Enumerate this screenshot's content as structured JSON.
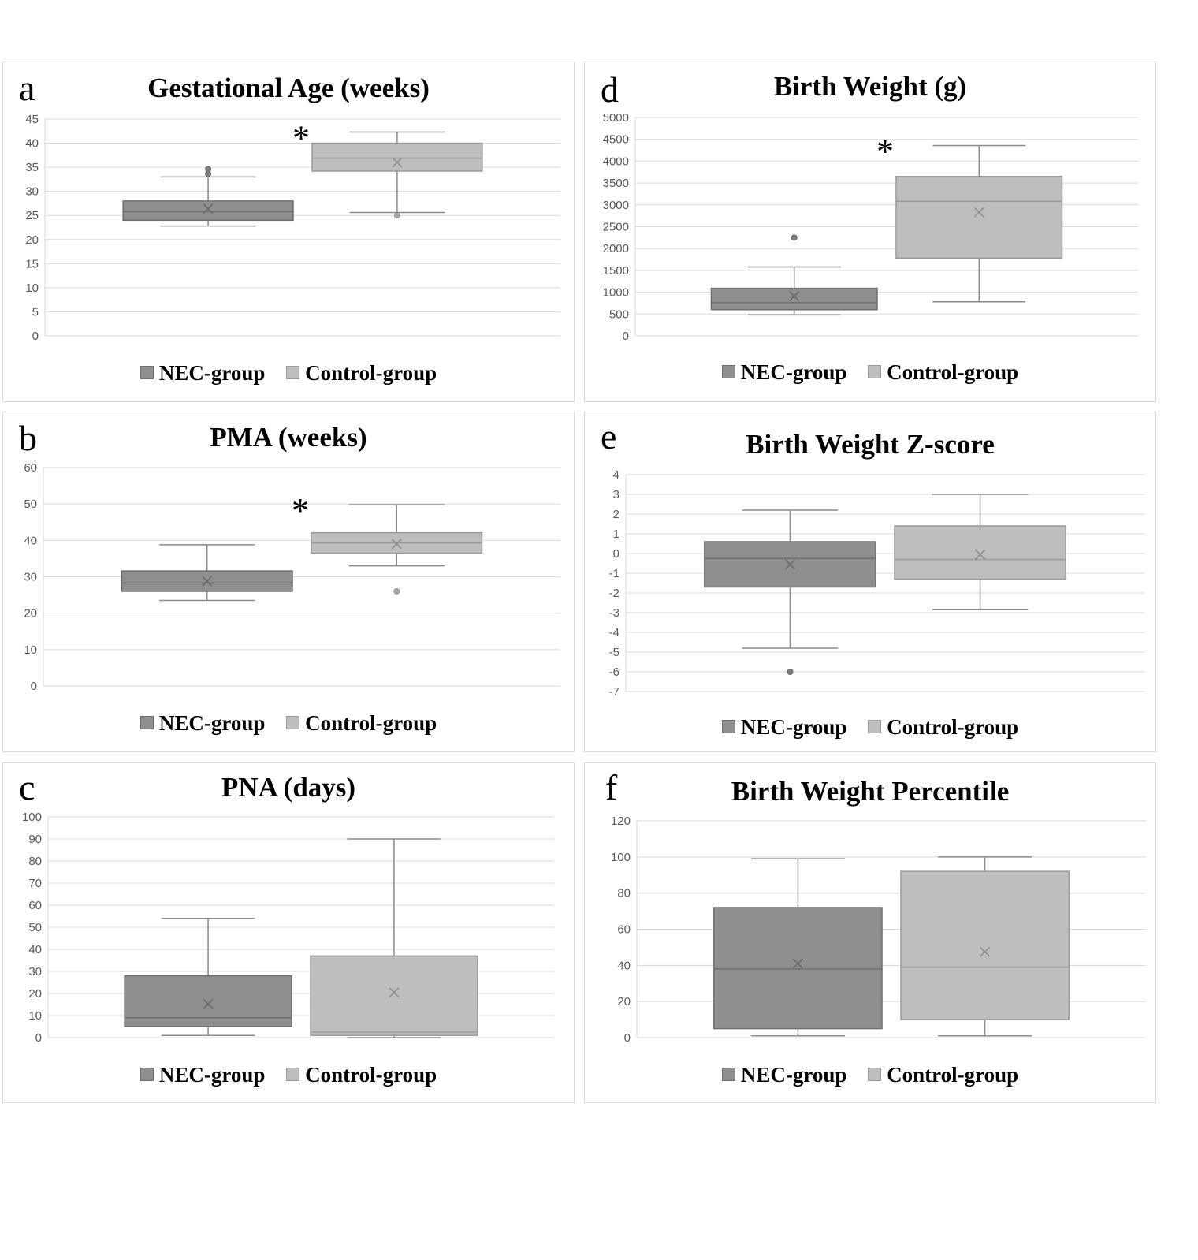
{
  "colors": {
    "nec_fill": "#8f8f8f",
    "nec_stroke": "#6e6e6e",
    "control_fill": "#bebebe",
    "control_stroke": "#9a9a9a",
    "grid": "#d9d9d9",
    "whisker": "#8c8c8c"
  },
  "legend": {
    "nec": "NEC-group",
    "control": "Control-group"
  },
  "significance_marker": "*",
  "chart_data": [
    {
      "panel": "a",
      "type": "box",
      "title": "Gestational Age (weeks)",
      "ylim": [
        0,
        45
      ],
      "yticks": [
        0,
        5,
        10,
        15,
        20,
        25,
        30,
        35,
        40,
        45
      ],
      "ytick_labels": [
        "0",
        "5",
        "10",
        "15",
        "20",
        "25",
        "30",
        "35",
        "40",
        "45"
      ],
      "grid": true,
      "legend_position": "bottom",
      "significant": true,
      "series": [
        {
          "name": "NEC-group",
          "min": 22.8,
          "q1": 24.0,
          "median": 25.8,
          "q3": 28.0,
          "max": 33.0,
          "mean": 26.4,
          "outliers": [
            33.6,
            34.6
          ]
        },
        {
          "name": "Control-group",
          "min": 25.6,
          "q1": 34.2,
          "median": 36.9,
          "q3": 40.0,
          "max": 42.3,
          "mean": 36.0,
          "outliers": [
            25.0
          ]
        }
      ]
    },
    {
      "panel": "b",
      "type": "box",
      "title": "PMA (weeks)",
      "ylim": [
        0,
        60
      ],
      "yticks": [
        0,
        10,
        20,
        30,
        40,
        50,
        60
      ],
      "ytick_labels": [
        "0",
        "10",
        "20",
        "30",
        "40",
        "50",
        "60"
      ],
      "grid": true,
      "legend_position": "bottom",
      "significant": true,
      "series": [
        {
          "name": "NEC-group",
          "min": 23.5,
          "q1": 26.0,
          "median": 28.3,
          "q3": 31.6,
          "max": 38.8,
          "mean": 28.8,
          "outliers": []
        },
        {
          "name": "Control-group",
          "min": 33.0,
          "q1": 36.5,
          "median": 39.3,
          "q3": 42.1,
          "max": 49.8,
          "mean": 39.0,
          "outliers": [
            26.0
          ]
        }
      ]
    },
    {
      "panel": "c",
      "type": "box",
      "title": "PNA (days)",
      "ylim": [
        0,
        100
      ],
      "yticks": [
        0,
        10,
        20,
        30,
        40,
        50,
        60,
        70,
        80,
        90,
        100
      ],
      "ytick_labels": [
        "0",
        "10",
        "20",
        "30",
        "40",
        "50",
        "60",
        "70",
        "80",
        "90",
        "100"
      ],
      "grid": true,
      "legend_position": "bottom",
      "significant": false,
      "series": [
        {
          "name": "NEC-group",
          "min": 1.0,
          "q1": 5.0,
          "median": 9.0,
          "q3": 28.0,
          "max": 54.0,
          "mean": 15.2,
          "outliers": []
        },
        {
          "name": "Control-group",
          "min": 0.0,
          "q1": 1.0,
          "median": 2.5,
          "q3": 37.0,
          "max": 90.0,
          "mean": 20.5,
          "outliers": []
        }
      ]
    },
    {
      "panel": "d",
      "type": "box",
      "title": "Birth Weight (g)",
      "ylim": [
        0,
        5000
      ],
      "yticks": [
        0,
        500,
        1000,
        1500,
        2000,
        2500,
        3000,
        3500,
        4000,
        4500,
        5000
      ],
      "ytick_labels": [
        "0",
        "500",
        "1000",
        "1500",
        "2000",
        "2500",
        "3000",
        "3500",
        "4000",
        "4500",
        "5000"
      ],
      "grid": true,
      "legend_position": "bottom",
      "significant": true,
      "series": [
        {
          "name": "NEC-group",
          "min": 480,
          "q1": 600,
          "median": 760,
          "q3": 1090,
          "max": 1580,
          "mean": 910,
          "outliers": [
            2250
          ]
        },
        {
          "name": "Control-group",
          "min": 780,
          "q1": 1780,
          "median": 3080,
          "q3": 3650,
          "max": 4360,
          "mean": 2830,
          "outliers": []
        }
      ]
    },
    {
      "panel": "e",
      "type": "box",
      "title": "Birth Weight Z-score",
      "ylim": [
        -7,
        4
      ],
      "yticks": [
        -7,
        -6,
        -5,
        -4,
        -3,
        -2,
        -1,
        0,
        1,
        2,
        3,
        4
      ],
      "ytick_labels": [
        "-7",
        "-6",
        "-5",
        "-4",
        "-3",
        "-2",
        "-1",
        "0",
        "1",
        "2",
        "3",
        "4"
      ],
      "grid": true,
      "legend_position": "bottom",
      "significant": false,
      "series": [
        {
          "name": "NEC-group",
          "min": -4.8,
          "q1": -1.7,
          "median": -0.25,
          "q3": 0.6,
          "max": 2.2,
          "mean": -0.55,
          "outliers": [
            -6.0
          ]
        },
        {
          "name": "Control-group",
          "min": -2.85,
          "q1": -1.3,
          "median": -0.3,
          "q3": 1.4,
          "max": 3.0,
          "mean": -0.05,
          "outliers": []
        }
      ]
    },
    {
      "panel": "f",
      "type": "box",
      "title": "Birth Weight Percentile",
      "ylim": [
        0,
        120
      ],
      "yticks": [
        0,
        20,
        40,
        60,
        80,
        100,
        120
      ],
      "ytick_labels": [
        "0",
        "20",
        "40",
        "60",
        "80",
        "100",
        "120"
      ],
      "grid": true,
      "legend_position": "bottom",
      "significant": false,
      "series": [
        {
          "name": "NEC-group",
          "min": 1,
          "q1": 5,
          "median": 38,
          "q3": 72,
          "max": 99,
          "mean": 41,
          "outliers": []
        },
        {
          "name": "Control-group",
          "min": 1,
          "q1": 10,
          "median": 39,
          "q3": 92,
          "max": 100,
          "mean": 47.5,
          "outliers": []
        }
      ]
    }
  ]
}
